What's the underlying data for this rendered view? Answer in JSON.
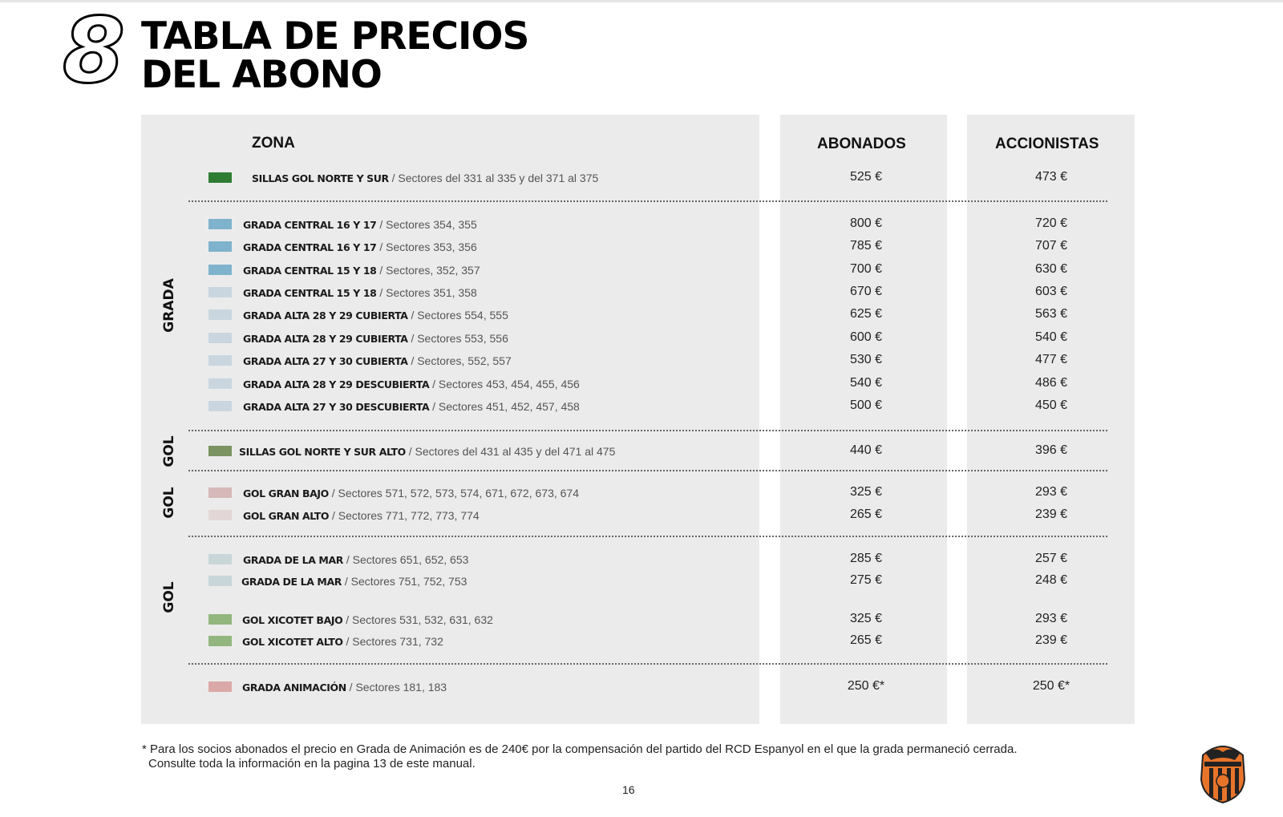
{
  "section_number": "8",
  "title_line1": "TABLA DE PRECIOS",
  "title_line2": "DEL ABONO",
  "headers": {
    "zona": "ZONA",
    "abonados": "ABONADOS",
    "accionistas": "ACCIONISTAS"
  },
  "groups": [
    "GRADA",
    "GOL",
    "GOL",
    "GOL"
  ],
  "rows": [
    {
      "name": "SILLAS GOL NORTE Y SUR",
      "sectors": "/  Sectores del 331 al 335 y del 371 al 375",
      "abonados": "525 €",
      "accionistas": "473 €",
      "color": "#2e7d32"
    },
    {
      "name": "GRADA CENTRAL 16 Y 17",
      "sectors": "/ Sectores 354, 355",
      "abonados": "800 €",
      "accionistas": "720 €",
      "color": "#7fb2cc"
    },
    {
      "name": "GRADA CENTRAL 16 Y 17",
      "sectors": "/ Sectores 353, 356",
      "abonados": "785 €",
      "accionistas": "707 €",
      "color": "#7fb2cc"
    },
    {
      "name": "GRADA CENTRAL 15 Y 18",
      "sectors": "/ Sectores, 352, 357",
      "abonados": "700 €",
      "accionistas": "630 €",
      "color": "#7fb2cc"
    },
    {
      "name": "GRADA CENTRAL 15 Y 18",
      "sectors": "/ Sectores 351, 358",
      "abonados": "670 €",
      "accionistas": "603 €",
      "color": "#c9d6df"
    },
    {
      "name": "GRADA ALTA 28 Y 29 CUBIERTA",
      "sectors": "/ Sectores 554, 555",
      "abonados": "625 €",
      "accionistas": "563 €",
      "color": "#c9d6df"
    },
    {
      "name": "GRADA ALTA 28 Y 29 CUBIERTA",
      "sectors": "/ Sectores 553, 556",
      "abonados": "600 €",
      "accionistas": "540 €",
      "color": "#c9d6df"
    },
    {
      "name": "GRADA ALTA 27 Y 30 CUBIERTA",
      "sectors": "/ Sectores, 552, 557",
      "abonados": "530 €",
      "accionistas": "477 €",
      "color": "#c9d6df"
    },
    {
      "name": "GRADA ALTA 28 Y 29 DESCUBIERTA",
      "sectors": "/ Sectores 453, 454, 455, 456",
      "abonados": "540 €",
      "accionistas": "486 €",
      "color": "#c9d6df"
    },
    {
      "name": "GRADA ALTA 27 Y 30 DESCUBIERTA",
      "sectors": "/ Sectores  451, 452, 457, 458",
      "abonados": "500 €",
      "accionistas": "450 €",
      "color": "#c9d6df"
    },
    {
      "name": "SILLAS GOL NORTE Y SUR ALTO",
      "sectors": "/ Sectores del 431 al 435 y del 471 al 475",
      "abonados": "440 €",
      "accionistas": "396 €",
      "color": "#7a9360"
    },
    {
      "name": "GOL GRAN BAJO",
      "sectors": "/ Sectores 571, 572, 573, 574, 671, 672, 673, 674",
      "abonados": "325 €",
      "accionistas": "293 €",
      "color": "#d6b8b8"
    },
    {
      "name": "GOL GRAN ALTO",
      "sectors": "/ Sectores 771, 772, 773, 774",
      "abonados": "265 €",
      "accionistas": "239 €",
      "color": "#e2d6d6"
    },
    {
      "name": "GRADA DE LA MAR",
      "sectors": "/ Sectores 651, 652, 653",
      "abonados": "285 €",
      "accionistas": "257 €",
      "color": "#c8d6d8"
    },
    {
      "name": "GRADA DE LA MAR",
      "sectors": "/ Sectores 751, 752, 753",
      "abonados": "275 €",
      "accionistas": "248 €",
      "color": "#c8d6d8"
    },
    {
      "name": "GOL XICOTET BAJO",
      "sectors": "/ Sectores 531, 532, 631, 632",
      "abonados": "325 €",
      "accionistas": "293 €",
      "color": "#93b67e"
    },
    {
      "name": "GOL XICOTET ALTO",
      "sectors": "/ Sectores 731, 732",
      "abonados": "265 €",
      "accionistas": "239 €",
      "color": "#93b67e"
    },
    {
      "name": "GRADA ANIMACIÓN",
      "sectors": " / Sectores 181, 183",
      "abonados": "250 €*",
      "accionistas": "250 €*",
      "color": "#dba8a8"
    }
  ],
  "footnote_line1": "* Para los socios abonados el precio en Grada de Animación es de 240€ por la compensación del partido del RCD Espanyol en el que la grada permaneció cerrada.",
  "footnote_line2": "Consulte toda la información en la pagina 13 de este manual.",
  "page_number": "16",
  "logo_text": "VALENCIA C.F."
}
